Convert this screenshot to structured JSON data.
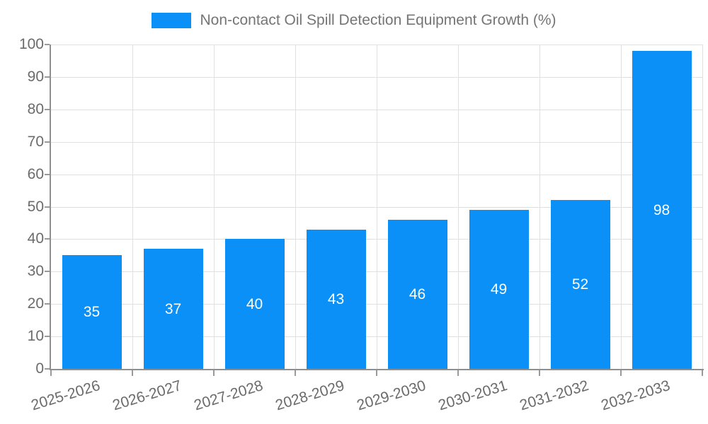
{
  "colors": {
    "bar": "#0a90f6",
    "axis_line": "#8f8f8f",
    "gridline": "#e0e0e0",
    "tick_mark": "#9a9a9a",
    "tick_label_text": "#6b6b6b",
    "legend_text": "#757575",
    "bar_value_text": "#ffffff",
    "background": "#ffffff"
  },
  "legend": {
    "label": "Non-contact Oil Spill Detection Equipment Growth (%)",
    "position": "top-center"
  },
  "chart_data": {
    "type": "bar",
    "title": "Non-contact Oil Spill Detection Equipment Growth (%)",
    "categories": [
      "2025-2026",
      "2026-2027",
      "2027-2028",
      "2028-2029",
      "2029-2030",
      "2030-2031",
      "2031-2032",
      "2032-2033"
    ],
    "values": [
      35,
      37,
      40,
      43,
      46,
      49,
      52,
      98
    ],
    "xlabel": "",
    "ylabel": "",
    "ylim": [
      0,
      100
    ],
    "ytick_step": 10,
    "yticks": [
      0,
      10,
      20,
      30,
      40,
      50,
      60,
      70,
      80,
      90,
      100
    ],
    "grid": true,
    "legend_position": "top-center",
    "bar_value_labels": true,
    "x_label_rotation_deg": -17
  }
}
